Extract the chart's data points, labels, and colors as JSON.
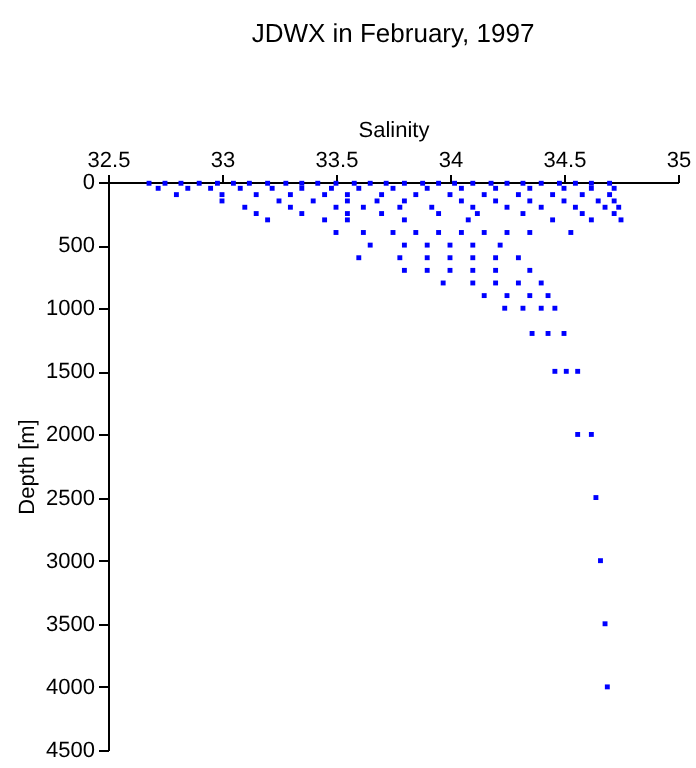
{
  "chart_data": {
    "type": "scatter",
    "title": "JDWX in February, 1997",
    "xlabel": "Salinity",
    "ylabel": "Depth [m]",
    "xlim": [
      32.5,
      35
    ],
    "xticks": [
      32.5,
      33,
      33.5,
      34,
      34.5,
      35
    ],
    "ylim": [
      4500,
      0
    ],
    "yticks": [
      0,
      500,
      1000,
      1500,
      2000,
      2500,
      3000,
      3500,
      4000,
      4500
    ],
    "grid": false,
    "marker": "square",
    "series": [
      {
        "color": "#0000ff",
        "x": [
          32.68,
          32.75,
          32.82,
          32.9,
          32.98,
          33.05,
          33.12,
          33.2,
          33.28,
          33.35,
          33.42,
          33.5,
          33.58,
          33.65,
          33.72,
          33.8,
          33.88,
          33.95,
          34.02,
          34.1,
          34.18,
          34.25,
          34.32,
          34.4,
          34.48,
          34.55,
          34.62,
          34.7,
          32.72,
          32.85,
          32.95,
          33.08,
          33.22,
          33.35,
          33.48,
          33.6,
          33.75,
          33.9,
          34.05,
          34.2,
          34.35,
          34.5,
          34.62,
          34.72,
          32.8,
          33.0,
          33.15,
          33.3,
          33.45,
          33.55,
          33.7,
          33.85,
          34.0,
          34.15,
          34.3,
          34.45,
          34.58,
          34.7,
          33.0,
          33.25,
          33.4,
          33.55,
          33.68,
          33.8,
          34.05,
          34.2,
          34.35,
          34.5,
          34.65,
          34.72,
          33.1,
          33.3,
          33.5,
          33.62,
          33.78,
          33.92,
          34.1,
          34.25,
          34.4,
          34.55,
          34.68,
          34.74,
          33.15,
          33.35,
          33.55,
          33.7,
          33.95,
          34.12,
          34.32,
          34.58,
          34.72,
          33.2,
          33.45,
          33.55,
          33.8,
          34.08,
          34.45,
          34.62,
          34.75,
          33.5,
          33.62,
          33.75,
          33.85,
          33.95,
          34.05,
          34.15,
          34.25,
          34.35,
          34.53,
          33.65,
          33.8,
          33.9,
          34.0,
          34.1,
          34.22,
          33.6,
          33.78,
          33.9,
          34.0,
          34.1,
          34.2,
          34.3,
          33.8,
          33.9,
          34.0,
          34.1,
          34.2,
          34.35,
          33.97,
          34.1,
          34.2,
          34.3,
          34.4,
          34.15,
          34.25,
          34.35,
          34.43,
          34.24,
          34.32,
          34.4,
          34.46,
          34.36,
          34.43,
          34.5,
          34.46,
          34.51,
          34.56,
          34.56,
          34.62,
          34.64,
          34.66,
          34.68,
          34.69
        ],
        "values": [
          10,
          10,
          10,
          10,
          10,
          10,
          10,
          10,
          10,
          10,
          10,
          10,
          10,
          10,
          10,
          10,
          10,
          10,
          10,
          10,
          10,
          10,
          10,
          10,
          10,
          10,
          10,
          10,
          50,
          50,
          50,
          50,
          50,
          50,
          50,
          50,
          50,
          50,
          50,
          50,
          50,
          50,
          50,
          50,
          100,
          100,
          100,
          100,
          100,
          100,
          100,
          100,
          100,
          100,
          100,
          100,
          100,
          100,
          150,
          150,
          150,
          150,
          150,
          150,
          150,
          150,
          150,
          150,
          150,
          150,
          200,
          200,
          200,
          200,
          200,
          200,
          200,
          200,
          200,
          200,
          200,
          200,
          250,
          250,
          250,
          250,
          250,
          250,
          250,
          250,
          250,
          300,
          300,
          300,
          300,
          300,
          300,
          300,
          300,
          400,
          400,
          400,
          400,
          400,
          400,
          400,
          400,
          400,
          400,
          500,
          500,
          500,
          500,
          500,
          500,
          600,
          600,
          600,
          600,
          600,
          600,
          600,
          700,
          700,
          700,
          700,
          700,
          700,
          800,
          800,
          800,
          800,
          800,
          900,
          900,
          900,
          900,
          1000,
          1000,
          1000,
          1000,
          1200,
          1200,
          1200,
          1500,
          1500,
          1500,
          2000,
          2000,
          2500,
          3000,
          3500,
          4000
        ]
      }
    ]
  }
}
